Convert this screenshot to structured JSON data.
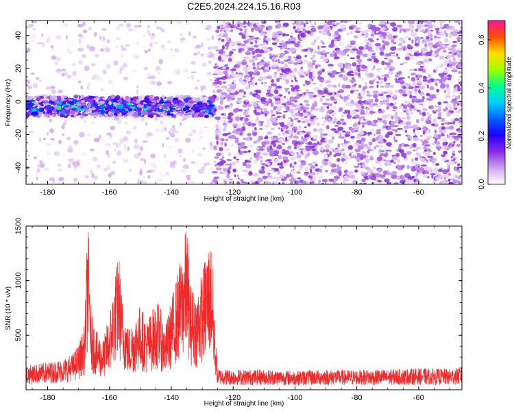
{
  "title": "C2E5.2024.224.15.16.R03",
  "chart_data": [
    {
      "type": "heatmap",
      "xlabel": "Height of straight line (km)",
      "ylabel": "Frequency (Hz)",
      "xlim": [
        -187,
        -46
      ],
      "ylim": [
        -50,
        49
      ],
      "xticks": [
        -180,
        -160,
        -140,
        -120,
        -100,
        -80,
        -60
      ],
      "yticks": [
        -40,
        -20,
        0,
        20,
        40
      ],
      "colorbar": {
        "label": "Normalized spectral amplitude",
        "range": [
          0,
          0.68
        ],
        "ticks": [
          0.0,
          0.2,
          0.4,
          0.6
        ],
        "colors": [
          "#ffffff",
          "#d8b8f0",
          "#8a2be2",
          "#4b00ff",
          "#0000ff",
          "#00bfff",
          "#00ff80",
          "#ffff00",
          "#ff8000",
          "#ff0000",
          "#ff1493"
        ]
      },
      "regions": [
        {
          "x_range": [
            -187,
            -126
          ],
          "description": "signal band near 0 Hz with sparse background",
          "band_center_hz": -3,
          "band_halfwidth_hz": 6,
          "peak_amplitude": 0.55
        },
        {
          "x_range": [
            -126,
            -46
          ],
          "description": "noisy speckle across all frequencies",
          "peak_amplitude": 0.12
        }
      ]
    },
    {
      "type": "line",
      "xlabel": "Height of straight line (km)",
      "ylabel": "SNR (10 * v/v)",
      "xlim": [
        -187,
        -46
      ],
      "ylim": [
        0,
        1500
      ],
      "xticks": [
        -180,
        -160,
        -140,
        -120,
        -100,
        -80,
        -60
      ],
      "yticks": [
        500,
        1000,
        1500
      ],
      "color": "#ee2a2a",
      "series": [
        {
          "x": [
            -187,
            -180,
            -175,
            -172,
            -170,
            -168,
            -167,
            -166,
            -164,
            -162,
            -160,
            -158,
            -157,
            -156,
            -154,
            -152,
            -150,
            -148,
            -146,
            -144,
            -142,
            -140,
            -138,
            -136,
            -135,
            -134,
            -132,
            -130,
            -128,
            -127,
            -126,
            -125,
            -120,
            -110,
            -100,
            -90,
            -80,
            -70,
            -60,
            -50,
            -46
          ],
          "values": [
            200,
            230,
            260,
            300,
            380,
            560,
            1500,
            650,
            480,
            420,
            640,
            1000,
            1160,
            780,
            520,
            600,
            720,
            580,
            680,
            740,
            520,
            760,
            980,
            1200,
            1430,
            900,
            800,
            1000,
            1240,
            1230,
            600,
            180,
            170,
            170,
            160,
            170,
            165,
            170,
            180,
            175,
            190
          ]
        }
      ]
    }
  ]
}
